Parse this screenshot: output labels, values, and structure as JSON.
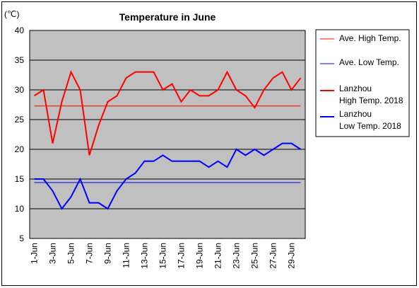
{
  "chart_data": {
    "type": "line",
    "title": "Temperature in June",
    "unit_label": "(℃)",
    "ylim": [
      5,
      40
    ],
    "yticks": [
      5,
      10,
      15,
      20,
      25,
      30,
      35,
      40
    ],
    "x": [
      1,
      2,
      3,
      4,
      5,
      6,
      7,
      8,
      9,
      10,
      11,
      12,
      13,
      14,
      15,
      16,
      17,
      18,
      19,
      20,
      21,
      22,
      23,
      24,
      25,
      26,
      27,
      28,
      29,
      30
    ],
    "xtick_labels": [
      "1-Jun",
      "3-Jun",
      "5-Jun",
      "7-Jun",
      "9-Jun",
      "11-Jun",
      "13-Jun",
      "15-Jun",
      "17-Jun",
      "19-Jun",
      "21-Jun",
      "23-Jun",
      "25-Jun",
      "27-Jun",
      "29-Jun"
    ],
    "xtick_days": [
      1,
      3,
      5,
      7,
      9,
      11,
      13,
      15,
      17,
      19,
      21,
      23,
      25,
      27,
      29
    ],
    "grid": true,
    "legend_position": "right",
    "series": [
      {
        "name": "Ave. High Temp.",
        "color": "#ff0000",
        "style": "thin",
        "values": [
          27.3,
          27.3,
          27.3,
          27.3,
          27.3,
          27.3,
          27.3,
          27.3,
          27.3,
          27.3,
          27.3,
          27.3,
          27.3,
          27.3,
          27.3,
          27.3,
          27.3,
          27.3,
          27.3,
          27.3,
          27.3,
          27.3,
          27.3,
          27.3,
          27.3,
          27.3,
          27.3,
          27.3,
          27.3,
          27.3
        ]
      },
      {
        "name": "Ave. Low Temp.",
        "color": "#0000ff",
        "style": "thin",
        "values": [
          14.4,
          14.4,
          14.4,
          14.4,
          14.4,
          14.4,
          14.4,
          14.4,
          14.4,
          14.4,
          14.4,
          14.4,
          14.4,
          14.4,
          14.4,
          14.4,
          14.4,
          14.4,
          14.4,
          14.4,
          14.4,
          14.4,
          14.4,
          14.4,
          14.4,
          14.4,
          14.4,
          14.4,
          14.4,
          14.4
        ]
      },
      {
        "name": "Lanzhou\nHigh Temp. 2018",
        "color": "#ff0000",
        "style": "thick",
        "values": [
          29,
          30,
          21,
          28,
          33,
          30,
          19,
          24,
          28,
          29,
          32,
          33,
          33,
          33,
          30,
          31,
          28,
          30,
          29,
          29,
          30,
          33,
          30,
          29,
          27,
          30,
          32,
          33,
          30,
          32
        ]
      },
      {
        "name": "Lanzhou\nLow Temp. 2018",
        "color": "#0000ff",
        "style": "thick",
        "values": [
          15,
          15,
          13,
          10,
          12,
          15,
          11,
          11,
          10,
          13,
          15,
          16,
          18,
          18,
          19,
          18,
          18,
          18,
          18,
          17,
          18,
          17,
          20,
          19,
          20,
          19,
          20,
          21,
          21,
          20
        ]
      }
    ]
  }
}
